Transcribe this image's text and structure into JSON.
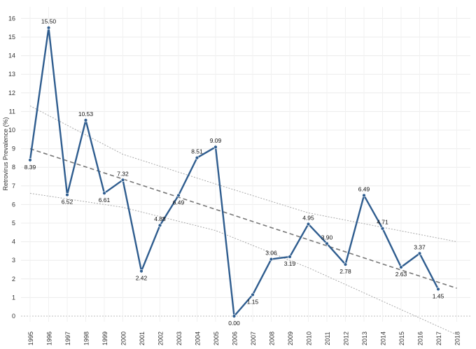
{
  "chart_data": {
    "type": "line",
    "title": "",
    "xlabel": "",
    "ylabel": "Retrovirus Prevalence (%)",
    "x": [
      "1995",
      "1996",
      "1997",
      "1998",
      "1999",
      "2000",
      "2001",
      "2002",
      "2003",
      "2004",
      "2005",
      "2006",
      "2007",
      "2008",
      "2009",
      "2010",
      "2011",
      "2012",
      "2013",
      "2014",
      "2015",
      "2016",
      "2017",
      "2018"
    ],
    "ylim": [
      0,
      16
    ],
    "y_ticks": [
      0,
      1,
      2,
      3,
      4,
      5,
      6,
      7,
      8,
      9,
      10,
      11,
      12,
      13,
      14,
      15,
      16
    ],
    "grid": true,
    "series": [
      {
        "color": "#2f5d8f",
        "values": [
          8.39,
          15.5,
          6.52,
          10.53,
          6.61,
          7.32,
          2.42,
          4.88,
          6.49,
          8.51,
          9.09,
          0.0,
          1.15,
          3.06,
          3.19,
          4.95,
          3.9,
          2.78,
          6.49,
          4.71,
          2.63,
          3.37,
          1.45,
          null
        ],
        "labels": [
          "8.39",
          "15.50",
          "6.52",
          "10.53",
          "6.61",
          "7.32",
          "2.42",
          "4.88",
          "6.49",
          "8.51",
          "9.09",
          "0.00",
          "1.15",
          "3.06",
          "3.19",
          "4.95",
          "3.90",
          "2.78",
          "6.49",
          "4.71",
          "2.63",
          "3.37",
          "1.45",
          ""
        ]
      }
    ],
    "trend": {
      "color": "#777777",
      "start": [
        "1995",
        9.0
      ],
      "end": [
        "2018",
        1.5
      ]
    },
    "confidence_band": {
      "color": "#aaaaaa",
      "upper": [
        [
          1995,
          11.3
        ],
        [
          2000,
          8.7
        ],
        [
          2005,
          7.1
        ],
        [
          2010,
          5.55
        ],
        [
          2018,
          4.0
        ]
      ],
      "lower": [
        [
          1995,
          6.6
        ],
        [
          2000,
          5.85
        ],
        [
          2005,
          4.6
        ],
        [
          2010,
          2.6
        ],
        [
          2018,
          -1.0
        ]
      ]
    }
  }
}
